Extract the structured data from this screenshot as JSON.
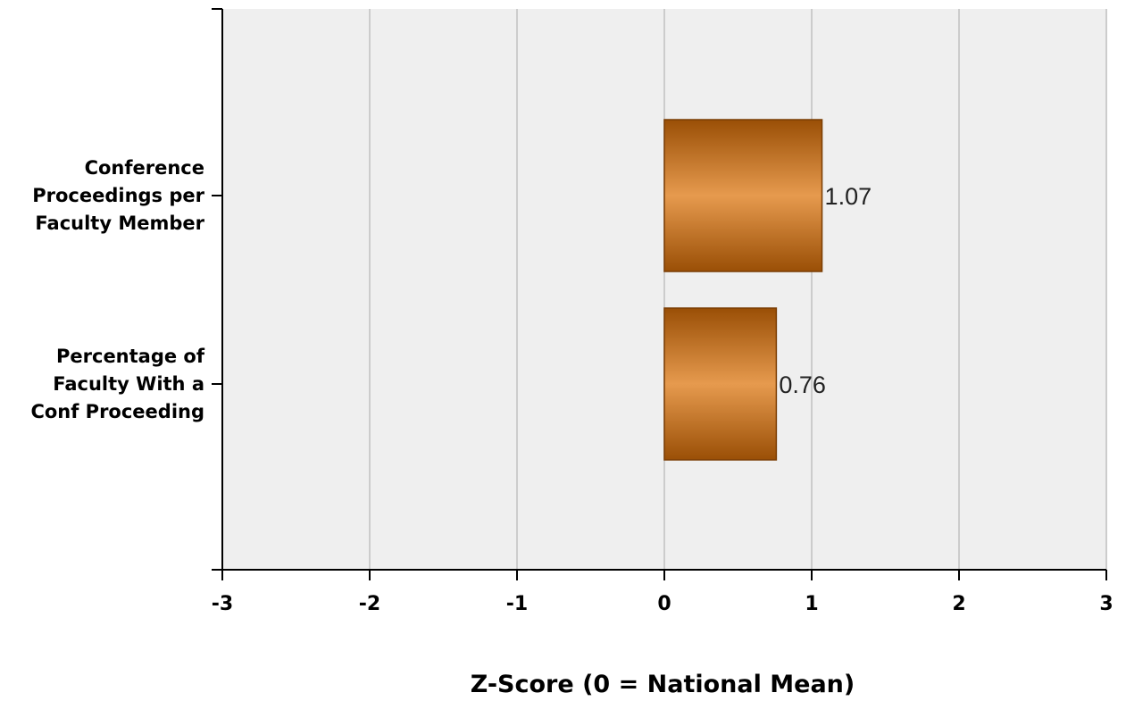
{
  "chart_data": {
    "type": "bar",
    "orientation": "horizontal",
    "categories": [
      [
        "Conference",
        "Proceedings per",
        "Faculty Member"
      ],
      [
        "Percentage of",
        "Faculty With a",
        "Conf Proceeding"
      ]
    ],
    "values": [
      1.07,
      0.76
    ],
    "data_labels": [
      "1.07",
      "0.76"
    ],
    "xlabel": "Z-Score (0 = National Mean)",
    "xlim": [
      -3,
      3
    ],
    "xticks": [
      "-3",
      "-2",
      "-1",
      "0",
      "1",
      "2",
      "3"
    ],
    "grid": true,
    "legend": "none",
    "colors": {
      "bar_dark": "#9a4f06",
      "bar_light": "#e69a4e",
      "band_shade": "#efefef",
      "gridline": "#cccccc",
      "axis": "#000000"
    }
  }
}
